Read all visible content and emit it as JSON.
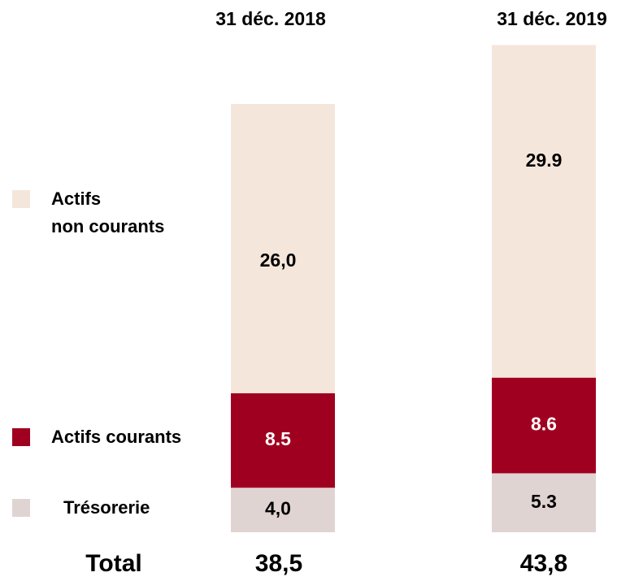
{
  "chart_data": {
    "type": "stacked_bar",
    "categories": [
      "31 déc. 2018",
      "31 déc. 2019"
    ],
    "series": [
      {
        "name": "Trésorerie",
        "color": "#e0d4d2",
        "values": [
          4.0,
          5.3
        ],
        "value_labels": [
          "4,0",
          "5.3"
        ]
      },
      {
        "name": "Actifs courants",
        "color": "#a00020",
        "values": [
          8.5,
          8.6
        ],
        "value_labels": [
          "8.5",
          "8.6"
        ]
      },
      {
        "name": "Actifs\nnon courants",
        "color": "#f5e6dc",
        "values": [
          26.0,
          29.9
        ],
        "value_labels": [
          "26,0",
          "29.9"
        ]
      }
    ],
    "total_label": "Total",
    "totals": [
      38.5,
      43.8
    ],
    "totals_labels": [
      "38,5",
      "43,8"
    ]
  }
}
